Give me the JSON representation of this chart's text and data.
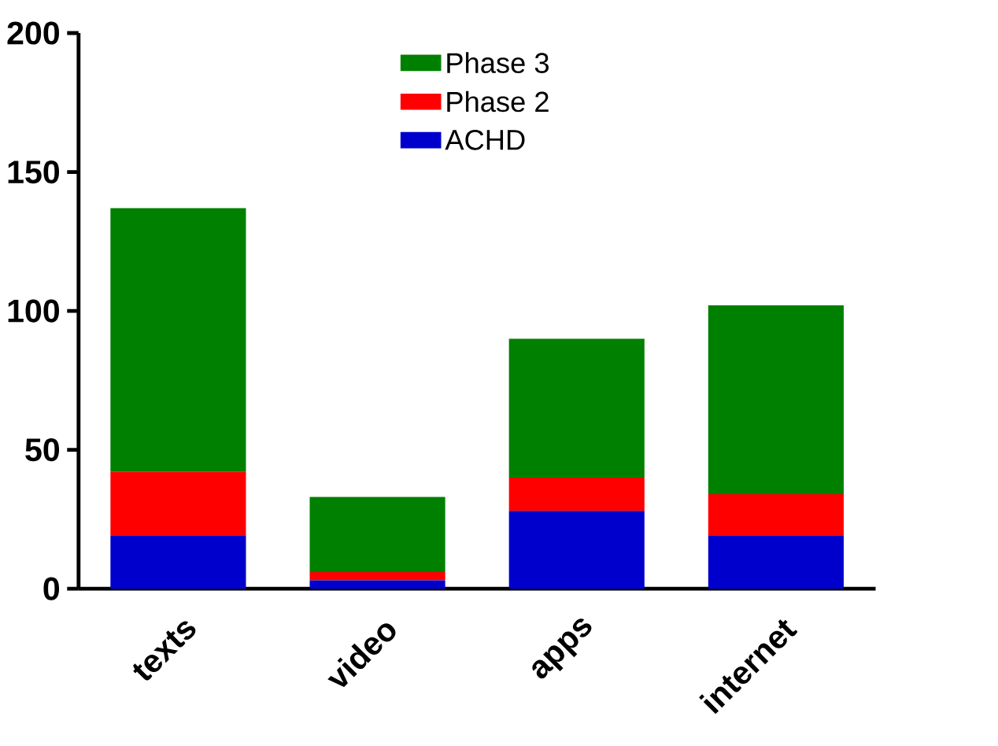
{
  "chart_data": {
    "type": "bar",
    "stacked": true,
    "categories": [
      "texts",
      "video",
      "apps",
      "internet"
    ],
    "series": [
      {
        "name": "ACHD",
        "color": "#0000cc",
        "values": [
          19,
          3,
          28,
          19
        ]
      },
      {
        "name": "Phase 2",
        "color": "#ff0000",
        "values": [
          23,
          3,
          12,
          15
        ]
      },
      {
        "name": "Phase 3",
        "color": "#008000",
        "values": [
          95,
          27,
          50,
          68
        ]
      }
    ],
    "ylim": [
      0,
      200
    ],
    "yticks": [
      0,
      50,
      100,
      150,
      200
    ],
    "legend": "top",
    "grid": false
  }
}
